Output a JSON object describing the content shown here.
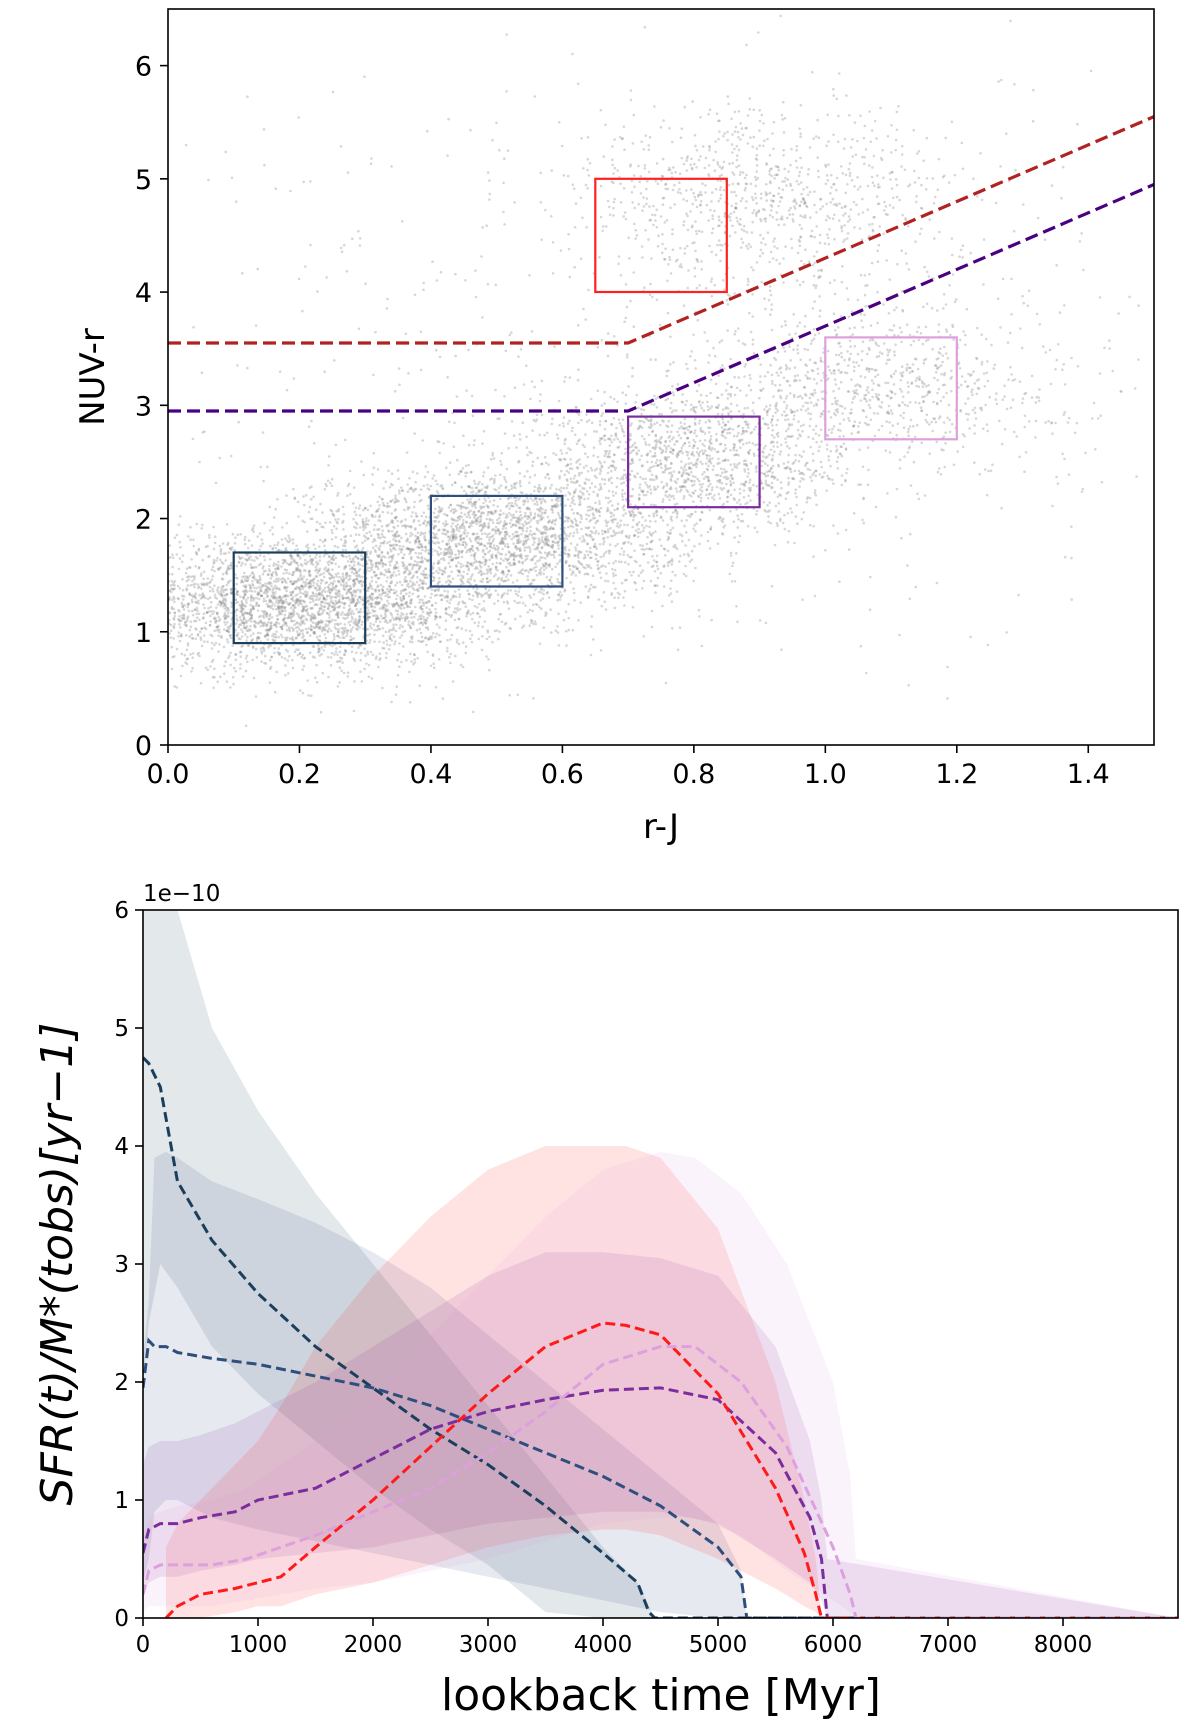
{
  "chart_data": [
    {
      "type": "scatter",
      "xlabel": "r-J",
      "ylabel": "NUV-r",
      "xlim": [
        0.0,
        1.5
      ],
      "ylim": [
        0,
        6.5
      ],
      "xticks": [
        "0.0",
        "0.2",
        "0.4",
        "0.6",
        "0.8",
        "1.0",
        "1.2",
        "1.4"
      ],
      "yticks": [
        "0",
        "1",
        "2",
        "3",
        "4",
        "5",
        "6"
      ],
      "points_color": "#8c8c8c",
      "point_clusters": [
        {
          "x_mean": 0.2,
          "y_mean": 1.25,
          "x_sd": 0.16,
          "y_sd": 0.28,
          "weight": 0.35
        },
        {
          "x_mean": 0.5,
          "y_mean": 1.85,
          "x_sd": 0.14,
          "y_sd": 0.3,
          "weight": 0.25
        },
        {
          "x_mean": 0.8,
          "y_mean": 2.5,
          "x_sd": 0.12,
          "y_sd": 0.32,
          "weight": 0.14
        },
        {
          "x_mean": 1.08,
          "y_mean": 3.2,
          "x_sd": 0.14,
          "y_sd": 0.35,
          "weight": 0.09
        },
        {
          "x_mean": 0.9,
          "y_mean": 4.8,
          "x_sd": 0.15,
          "y_sd": 0.4,
          "weight": 0.1
        },
        {
          "x_mean": 0.75,
          "y_mean": 3.2,
          "x_sd": 0.45,
          "y_sd": 1.4,
          "weight": 0.07
        }
      ],
      "lines": [
        {
          "color": "#b22222",
          "style": "dashed",
          "x": [
            0.0,
            0.7,
            1.5
          ],
          "y": [
            3.55,
            3.55,
            5.55
          ]
        },
        {
          "color": "#4b0082",
          "style": "dashed",
          "x": [
            0.0,
            0.7,
            1.5
          ],
          "y": [
            2.95,
            2.95,
            4.95
          ]
        }
      ],
      "boxes": [
        {
          "color": "#1a3f5c",
          "x": [
            0.1,
            0.3
          ],
          "y": [
            0.9,
            1.7
          ]
        },
        {
          "color": "#2e4e7e",
          "x": [
            0.4,
            0.6
          ],
          "y": [
            1.4,
            2.2
          ]
        },
        {
          "color": "#7b2d9e",
          "x": [
            0.7,
            0.9
          ],
          "y": [
            2.1,
            2.9
          ]
        },
        {
          "color": "#ff2020",
          "x": [
            0.65,
            0.85
          ],
          "y": [
            4.0,
            5.0
          ]
        },
        {
          "color": "#dda0dd",
          "x": [
            1.0,
            1.2
          ],
          "y": [
            2.7,
            3.6
          ]
        }
      ]
    },
    {
      "type": "line",
      "xlabel": "lookback time [Myr]",
      "ylabel": "SFR(t)/M*(tobs)[yr−1]",
      "y_multiplier": "1e−10",
      "xlim": [
        0,
        9000
      ],
      "ylim": [
        0,
        6
      ],
      "xticks": [
        "0",
        "1000",
        "2000",
        "3000",
        "4000",
        "5000",
        "6000",
        "7000",
        "8000"
      ],
      "yticks": [
        "0",
        "1",
        "2",
        "3",
        "4",
        "5",
        "6"
      ],
      "series": [
        {
          "color": "#1a3f5c",
          "x": [
            0,
            50,
            150,
            300,
            600,
            1000,
            1500,
            2000,
            2500,
            3000,
            3500,
            4000,
            4300,
            4400,
            4450,
            9000
          ],
          "y": [
            4.75,
            4.7,
            4.5,
            3.7,
            3.2,
            2.75,
            2.3,
            1.95,
            1.6,
            1.3,
            0.95,
            0.55,
            0.3,
            0.05,
            0,
            0
          ],
          "upper": [
            6.5,
            6.5,
            6.5,
            6.0,
            5.0,
            4.3,
            3.6,
            3.0,
            2.4,
            1.8,
            1.2,
            0.6,
            0.3,
            0.1,
            0,
            0
          ],
          "lower": [
            2.0,
            2.5,
            3.0,
            2.8,
            2.3,
            1.9,
            1.5,
            1.1,
            0.75,
            0.45,
            0.05,
            0,
            0,
            0,
            0,
            0
          ]
        },
        {
          "color": "#2e4e7e",
          "x": [
            0,
            50,
            100,
            200,
            300,
            600,
            1000,
            1500,
            2000,
            2500,
            3000,
            3500,
            4000,
            4500,
            5000,
            5200,
            5250,
            9000
          ],
          "y": [
            1.95,
            2.35,
            2.3,
            2.3,
            2.25,
            2.2,
            2.15,
            2.05,
            1.95,
            1.8,
            1.6,
            1.4,
            1.2,
            0.95,
            0.6,
            0.35,
            0,
            0
          ],
          "upper": [
            2.2,
            2.7,
            3.9,
            3.95,
            3.9,
            3.7,
            3.55,
            3.35,
            3.1,
            2.8,
            2.4,
            2.0,
            1.6,
            1.2,
            0.8,
            0.4,
            0,
            0
          ],
          "lower": [
            0.3,
            0.5,
            0.9,
            1.0,
            1.0,
            0.85,
            0.75,
            0.65,
            0.55,
            0.45,
            0.35,
            0.25,
            0.15,
            0.05,
            0,
            0,
            0,
            0
          ]
        },
        {
          "color": "#7b2d9e",
          "x": [
            0,
            50,
            150,
            300,
            500,
            800,
            1000,
            1500,
            2000,
            2500,
            3000,
            3500,
            4000,
            4500,
            5000,
            5500,
            5800,
            5900,
            5950,
            9000
          ],
          "y": [
            0.55,
            0.75,
            0.8,
            0.8,
            0.85,
            0.9,
            1.0,
            1.1,
            1.35,
            1.6,
            1.75,
            1.85,
            1.93,
            1.95,
            1.85,
            1.4,
            0.85,
            0.5,
            0,
            0
          ],
          "upper": [
            1.3,
            1.45,
            1.5,
            1.5,
            1.55,
            1.65,
            1.75,
            2.0,
            2.3,
            2.6,
            2.9,
            3.1,
            3.1,
            3.05,
            2.9,
            2.3,
            1.5,
            1.0,
            0.5,
            0
          ],
          "lower": [
            0.2,
            0.3,
            0.35,
            0.35,
            0.4,
            0.45,
            0.5,
            0.55,
            0.6,
            0.7,
            0.8,
            0.85,
            0.9,
            0.9,
            0.8,
            0.5,
            0.3,
            0.15,
            0,
            0
          ]
        },
        {
          "color": "#ff1a1a",
          "x": [
            200,
            300,
            500,
            800,
            1000,
            1200,
            1500,
            2000,
            2500,
            3000,
            3500,
            4000,
            4200,
            4500,
            5000,
            5500,
            5750,
            5850,
            5900,
            9000
          ],
          "y": [
            0,
            0.1,
            0.2,
            0.25,
            0.3,
            0.35,
            0.6,
            1.0,
            1.45,
            1.9,
            2.3,
            2.5,
            2.48,
            2.4,
            1.9,
            1.1,
            0.55,
            0.2,
            0,
            0
          ],
          "upper": [
            0.6,
            0.8,
            1.0,
            1.3,
            1.5,
            1.8,
            2.3,
            2.9,
            3.4,
            3.8,
            4.0,
            4.0,
            4.0,
            3.9,
            3.3,
            2.0,
            1.0,
            0.5,
            0,
            0
          ],
          "lower": [
            0,
            0,
            0,
            0.05,
            0.1,
            0.1,
            0.2,
            0.3,
            0.45,
            0.6,
            0.7,
            0.75,
            0.75,
            0.7,
            0.5,
            0.25,
            0.1,
            0.05,
            0,
            0
          ]
        },
        {
          "color": "#dda0dd",
          "x": [
            0,
            50,
            150,
            300,
            600,
            900,
            1200,
            1500,
            2000,
            2500,
            3000,
            3500,
            4000,
            4500,
            4800,
            5200,
            5600,
            6000,
            6150,
            6200,
            9000
          ],
          "y": [
            0.2,
            0.4,
            0.45,
            0.45,
            0.45,
            0.5,
            0.6,
            0.7,
            0.9,
            1.1,
            1.4,
            1.75,
            2.15,
            2.3,
            2.3,
            2.0,
            1.45,
            0.6,
            0.2,
            0,
            0
          ],
          "upper": [
            0.7,
            0.85,
            0.9,
            0.95,
            1.0,
            1.1,
            1.3,
            1.5,
            1.9,
            2.4,
            2.9,
            3.4,
            3.8,
            3.95,
            3.9,
            3.6,
            3.0,
            2.0,
            1.2,
            0.5,
            0
          ],
          "lower": [
            0.05,
            0.1,
            0.1,
            0.1,
            0.1,
            0.15,
            0.2,
            0.25,
            0.3,
            0.4,
            0.5,
            0.65,
            0.8,
            0.85,
            0.85,
            0.7,
            0.4,
            0.15,
            0.05,
            0,
            0
          ]
        }
      ]
    }
  ]
}
